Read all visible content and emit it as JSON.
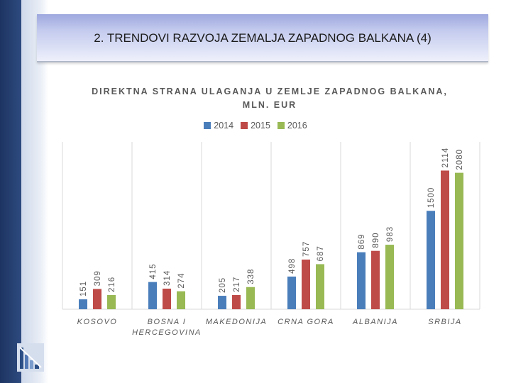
{
  "slide": {
    "title": "2. TRENDOVI RAZVOJA ZEMALJA ZAPADNOG BALKANA (4)"
  },
  "chart_data": {
    "type": "bar",
    "title_lines": [
      "DIREKTNA STRANA ULAGANJA U ZEMLJE ZAPADNOG BALKANA,",
      "MLN. EUR"
    ],
    "categories": [
      [
        "KOSOVO"
      ],
      [
        "BOSNA I",
        "HERCEGOVINA"
      ],
      [
        "MAKEDONIJA"
      ],
      [
        "CRNA GORA"
      ],
      [
        "ALBANIJA"
      ],
      [
        "SRBIJA"
      ]
    ],
    "series": [
      {
        "name": "2014",
        "color": "#4a7ebb",
        "values": [
          151,
          415,
          205,
          498,
          869,
          1500
        ]
      },
      {
        "name": "2015",
        "color": "#be4b48",
        "values": [
          309,
          314,
          217,
          757,
          890,
          2114
        ]
      },
      {
        "name": "2016",
        "color": "#98b954",
        "values": [
          216,
          274,
          338,
          687,
          983,
          2080
        ]
      }
    ],
    "ylim": [
      0,
      2400
    ],
    "legend_position": "top-center",
    "grid": "vertical category separators"
  }
}
